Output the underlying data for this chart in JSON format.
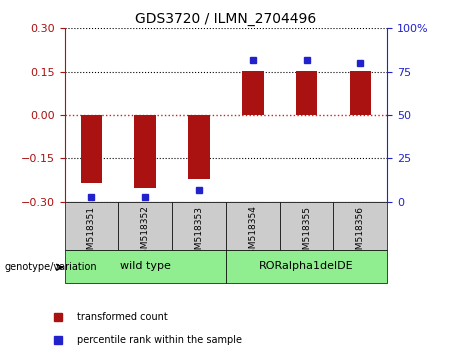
{
  "title": "GDS3720 / ILMN_2704496",
  "samples": [
    "GSM518351",
    "GSM518352",
    "GSM518353",
    "GSM518354",
    "GSM518355",
    "GSM518356"
  ],
  "bar_values": [
    -0.235,
    -0.252,
    -0.222,
    0.152,
    0.152,
    0.152
  ],
  "percentile_values": [
    2.5,
    2.5,
    7.0,
    82.0,
    82.0,
    80.0
  ],
  "ylim_left": [
    -0.3,
    0.3
  ],
  "ylim_right": [
    0,
    100
  ],
  "yticks_left": [
    -0.3,
    -0.15,
    0,
    0.15,
    0.3
  ],
  "yticks_right": [
    0,
    25,
    50,
    75,
    100
  ],
  "ytick_labels_right": [
    "0",
    "25",
    "50",
    "75",
    "100%"
  ],
  "bar_color": "#AA1111",
  "dot_color": "#2222CC",
  "zero_line_color": "#CC2222",
  "grid_color": "#000000",
  "group1_label": "wild type",
  "group2_label": "RORalpha1delDE",
  "group1_indices": [
    0,
    1,
    2
  ],
  "group2_indices": [
    3,
    4,
    5
  ],
  "group_bg_color": "#90EE90",
  "sample_bg_color": "#CCCCCC",
  "genotype_label": "genotype/variation",
  "legend_bar_label": "transformed count",
  "legend_dot_label": "percentile rank within the sample",
  "bar_width": 0.4
}
